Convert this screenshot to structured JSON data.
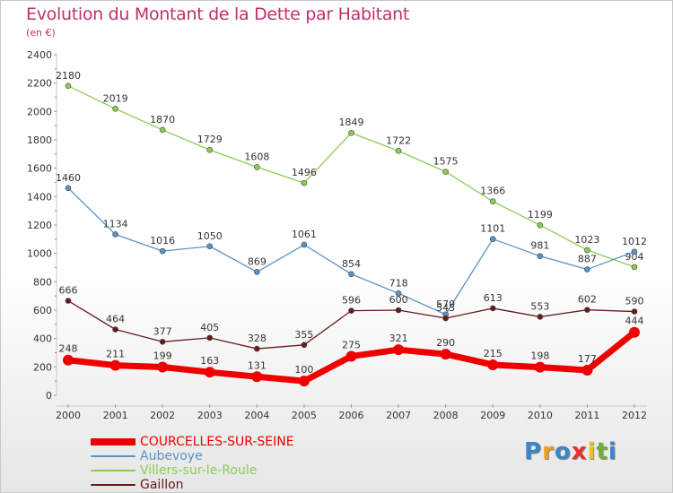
{
  "title": "Evolution du Montant de la Dette par Habitant",
  "unit_label": "(en €)",
  "logo_text": "Proxiti",
  "logo_colors": [
    "#3a86c8",
    "#e8a020",
    "#3a86c8",
    "#e83030",
    "#f0c020",
    "#70b030",
    "#3a86c8"
  ],
  "chart_data": {
    "type": "line",
    "x": [
      "2000",
      "2001",
      "2002",
      "2003",
      "2004",
      "2005",
      "2006",
      "2007",
      "2008",
      "2009",
      "2010",
      "2011",
      "2012"
    ],
    "ylim": [
      0,
      2400
    ],
    "yticks": [
      0,
      200,
      400,
      600,
      800,
      1000,
      1200,
      1400,
      1600,
      1800,
      2000,
      2200,
      2400
    ],
    "grid": false,
    "legend_position": "bottom-left",
    "series": [
      {
        "name": "Villers-sur-le-Roule",
        "color": "#8ccc55",
        "values": [
          2180,
          2019,
          1870,
          1729,
          1608,
          1496,
          1849,
          1722,
          1575,
          1366,
          1199,
          1023,
          904
        ]
      },
      {
        "name": "Aubevoye",
        "color": "#5b93c4",
        "values": [
          1460,
          1134,
          1016,
          1050,
          869,
          1061,
          854,
          718,
          570,
          1101,
          981,
          887,
          1012
        ]
      },
      {
        "name": "Gaillon",
        "color": "#6b1a1a",
        "values": [
          666,
          464,
          377,
          405,
          328,
          355,
          596,
          600,
          543,
          613,
          553,
          602,
          590
        ]
      },
      {
        "name": "COURCELLES-SUR-SEINE",
        "color": "#ee0000",
        "values": [
          248,
          211,
          199,
          163,
          131,
          100,
          275,
          321,
          290,
          215,
          198,
          177,
          444
        ]
      }
    ],
    "legend": [
      {
        "label": "COURCELLES-SUR-SEINE",
        "color": "#ee0000"
      },
      {
        "label": "Aubevoye",
        "color": "#5b93c4"
      },
      {
        "label": "Villers-sur-le-Roule",
        "color": "#8ccc55"
      },
      {
        "label": "Gaillon",
        "color": "#6b1a1a"
      }
    ]
  }
}
